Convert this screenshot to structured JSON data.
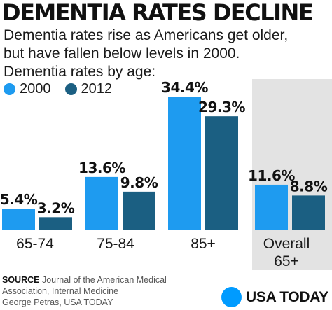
{
  "title": "DEMENTIA RATES DECLINE",
  "subtitle_line1": "Dementia rates rise as Americans get older,",
  "subtitle_line2": "but have fallen below levels in 2000.",
  "subtitle_line3": "Dementia rates by age:",
  "colors": {
    "series_2000": "#1e9bf0",
    "series_2012": "#1b5f82",
    "overall_bg": "#e3e3e3"
  },
  "chart_data": {
    "type": "bar",
    "categories": [
      "65-74",
      "75-84",
      "85+",
      "Overall 65+"
    ],
    "category_lines": [
      [
        "65-74"
      ],
      [
        "75-84"
      ],
      [
        "85+"
      ],
      [
        "Overall",
        "65+"
      ]
    ],
    "series": [
      {
        "name": "2000",
        "values": [
          5.4,
          13.6,
          34.4,
          11.6
        ],
        "labels": [
          "5.4%",
          "13.6%",
          "34.4%",
          "11.6%"
        ]
      },
      {
        "name": "2012",
        "values": [
          3.2,
          9.8,
          29.3,
          8.8
        ],
        "labels": [
          "3.2%",
          "9.8%",
          "29.3%",
          "8.8%"
        ]
      }
    ],
    "highlighted_category": "Overall 65+",
    "unit": "%"
  },
  "source": {
    "label": "SOURCE",
    "text": "Journal of the American Medical Association, Internal Medicine",
    "credit": "George Petras, USA TODAY"
  },
  "logo_text": "USA TODAY"
}
